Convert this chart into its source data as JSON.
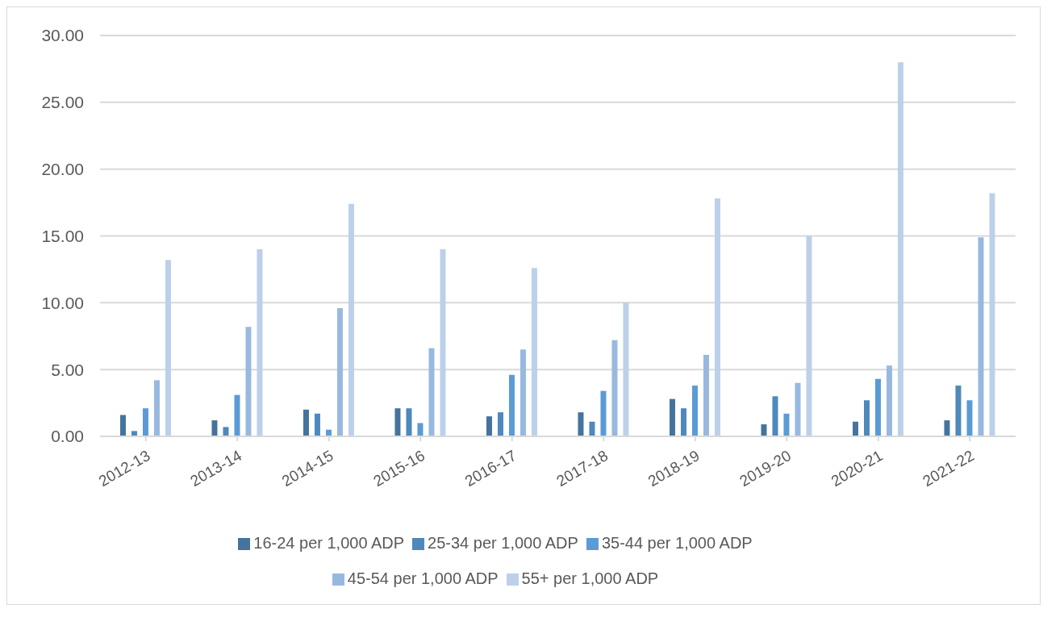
{
  "chart_data": {
    "type": "bar",
    "categories": [
      "2012-13",
      "2013-14",
      "2014-15",
      "2015-16",
      "2016-17",
      "2017-18",
      "2018-19",
      "2019-20",
      "2020-21",
      "2021-22"
    ],
    "series": [
      {
        "name": "16-24 per 1,000 ADP",
        "color": "#44749d",
        "values": [
          1.6,
          1.2,
          2.0,
          2.1,
          1.5,
          1.8,
          2.8,
          0.9,
          1.1,
          1.2
        ]
      },
      {
        "name": "25-34 per 1,000 ADP",
        "color": "#4f88bb",
        "values": [
          0.4,
          0.7,
          1.7,
          2.1,
          1.8,
          1.1,
          2.1,
          3.0,
          2.7,
          3.8
        ]
      },
      {
        "name": "35-44 per 1,000 ADP",
        "color": "#5b9bd5",
        "values": [
          2.1,
          3.1,
          0.5,
          1.0,
          4.6,
          3.4,
          3.8,
          1.7,
          4.3,
          2.7
        ]
      },
      {
        "name": "45-54 per 1,000 ADP",
        "color": "#98b9df",
        "values": [
          4.2,
          8.2,
          9.6,
          6.6,
          6.5,
          7.2,
          6.1,
          4.0,
          5.3,
          14.9
        ]
      },
      {
        "name": "55+ per 1,000 ADP",
        "color": "#bdd0ea",
        "values": [
          13.2,
          14.0,
          17.4,
          14.0,
          12.6,
          10.0,
          17.8,
          15.0,
          28.0,
          18.2
        ]
      }
    ],
    "ylim": [
      0,
      30
    ],
    "yticks": [
      {
        "value": 0,
        "label": "0.00"
      },
      {
        "value": 5,
        "label": "5.00"
      },
      {
        "value": 10,
        "label": "10.00"
      },
      {
        "value": 15,
        "label": "15.00"
      },
      {
        "value": 20,
        "label": "20.00"
      },
      {
        "value": 25,
        "label": "25.00"
      },
      {
        "value": 30,
        "label": "30.00"
      }
    ],
    "grid": "y",
    "legend": "bottom"
  }
}
